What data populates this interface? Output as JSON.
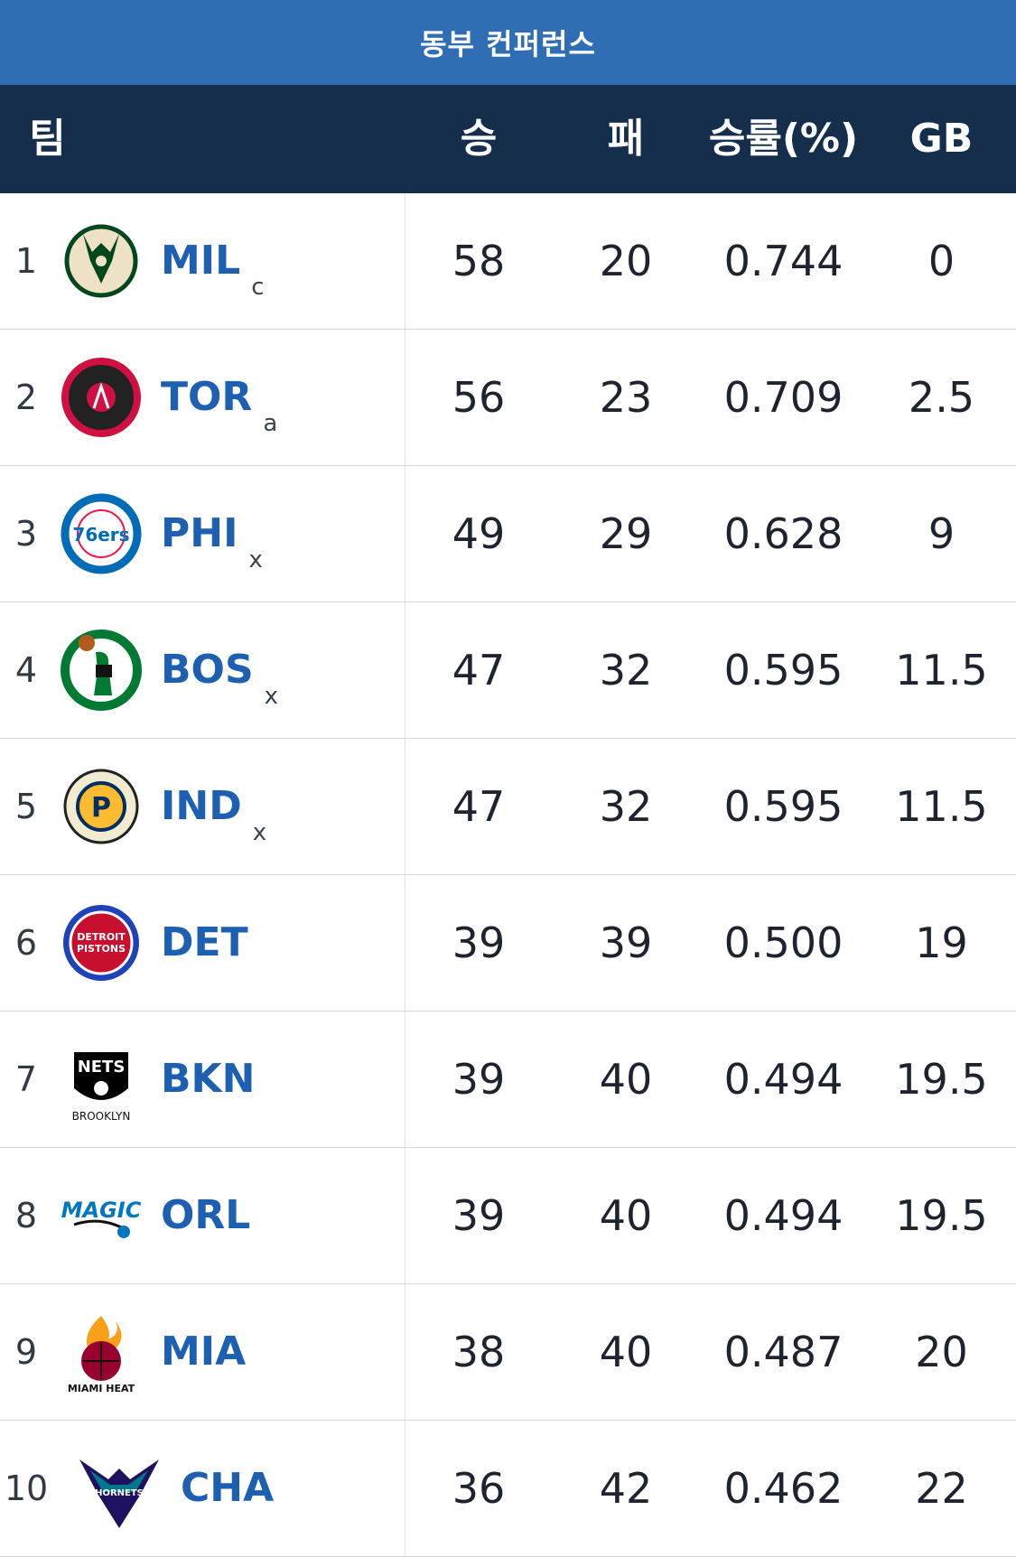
{
  "conference_title": "동부 컨퍼런스",
  "header": {
    "team": "팀",
    "wins": "승",
    "losses": "패",
    "pct": "승률(%)",
    "gb": "GB"
  },
  "teams": [
    {
      "rank": "1",
      "abbr": "MIL",
      "clinch": "c",
      "w": "58",
      "l": "20",
      "pct": "0.744",
      "gb": "0",
      "logo": "bucks-logo",
      "logo_text": "",
      "colors": [
        "#00471b",
        "#eee1c6"
      ]
    },
    {
      "rank": "2",
      "abbr": "TOR",
      "clinch": "a",
      "w": "56",
      "l": "23",
      "pct": "0.709",
      "gb": "2.5",
      "logo": "raptors-logo",
      "logo_text": "",
      "colors": [
        "#ce1141",
        "#222222"
      ]
    },
    {
      "rank": "3",
      "abbr": "PHI",
      "clinch": "x",
      "w": "49",
      "l": "29",
      "pct": "0.628",
      "gb": "9",
      "logo": "76ers-logo",
      "logo_text": "76ers",
      "colors": [
        "#006bb6",
        "#ed174c"
      ]
    },
    {
      "rank": "4",
      "abbr": "BOS",
      "clinch": "x",
      "w": "47",
      "l": "32",
      "pct": "0.595",
      "gb": "11.5",
      "logo": "celtics-logo",
      "logo_text": "",
      "colors": [
        "#007a33",
        "#ffffff"
      ]
    },
    {
      "rank": "5",
      "abbr": "IND",
      "clinch": "x",
      "w": "47",
      "l": "32",
      "pct": "0.595",
      "gb": "11.5",
      "logo": "pacers-logo",
      "logo_text": "P",
      "colors": [
        "#fdbb30",
        "#002d62"
      ]
    },
    {
      "rank": "6",
      "abbr": "DET",
      "clinch": "",
      "w": "39",
      "l": "39",
      "pct": "0.500",
      "gb": "19",
      "logo": "pistons-logo",
      "logo_text": "DETROIT PISTONS",
      "colors": [
        "#c8102e",
        "#1d42ba"
      ]
    },
    {
      "rank": "7",
      "abbr": "BKN",
      "clinch": "",
      "w": "39",
      "l": "40",
      "pct": "0.494",
      "gb": "19.5",
      "logo": "nets-logo",
      "logo_text": "NETS",
      "logo_subtext": "BROOKLYN",
      "colors": [
        "#000000",
        "#ffffff"
      ]
    },
    {
      "rank": "8",
      "abbr": "ORL",
      "clinch": "",
      "w": "39",
      "l": "40",
      "pct": "0.494",
      "gb": "19.5",
      "logo": "magic-logo",
      "logo_text": "MAGIC",
      "colors": [
        "#0077c0",
        "#c4ced4"
      ]
    },
    {
      "rank": "9",
      "abbr": "MIA",
      "clinch": "",
      "w": "38",
      "l": "40",
      "pct": "0.487",
      "gb": "20",
      "logo": "heat-logo",
      "logo_text": "MIAMI HEAT",
      "colors": [
        "#98002e",
        "#f9a01b"
      ]
    },
    {
      "rank": "10",
      "abbr": "CHA",
      "clinch": "",
      "w": "36",
      "l": "42",
      "pct": "0.462",
      "gb": "22",
      "logo": "hornets-logo",
      "logo_text": "HORNETS",
      "colors": [
        "#1d1160",
        "#00788c"
      ]
    }
  ]
}
